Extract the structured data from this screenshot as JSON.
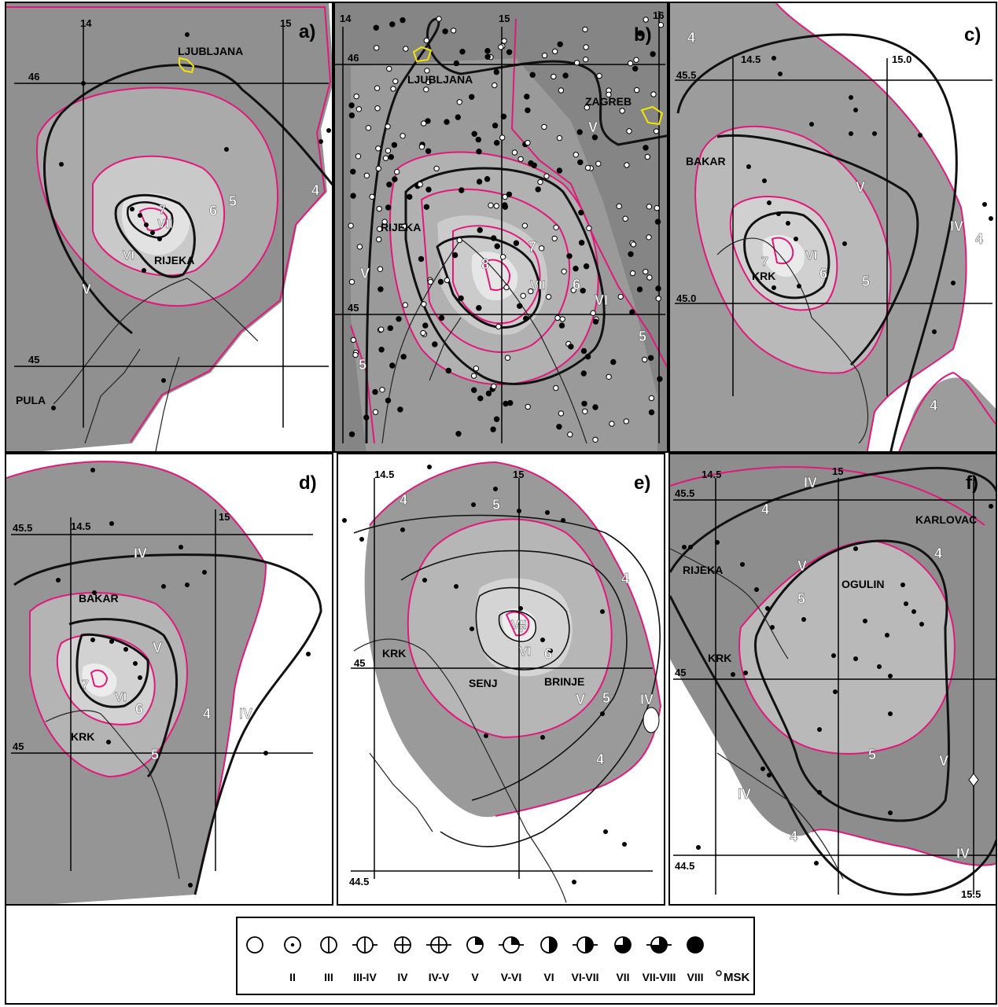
{
  "panels": [
    {
      "id": "a",
      "label": "a)",
      "grid_labels": [
        "14",
        "15",
        "46",
        "45"
      ],
      "places": [
        "LJUBLJANA",
        "RIJEKA",
        "PULA"
      ],
      "isoseismal_labels": [
        "VII",
        "VI",
        "V"
      ],
      "contour_labels": [
        "7",
        "6",
        "5",
        "4"
      ]
    },
    {
      "id": "b",
      "label": "b)",
      "grid_labels": [
        "14",
        "15",
        "16",
        "46",
        "45"
      ],
      "places": [
        "LJUBLJANA",
        "ZAGREB",
        "RIJEKA"
      ],
      "isoseismal_labels": [
        "VII",
        "VI",
        "V",
        "V"
      ],
      "contour_labels": [
        "8",
        "7",
        "6",
        "5",
        "5"
      ]
    },
    {
      "id": "c",
      "label": "c)",
      "grid_labels": [
        "14.5",
        "15.0",
        "45.5",
        "45.0"
      ],
      "places": [
        "BAKAR",
        "KRK"
      ],
      "isoseismal_labels": [
        "VI",
        "V",
        "IV"
      ],
      "contour_labels": [
        "7",
        "6",
        "5",
        "4",
        "4",
        "4"
      ]
    },
    {
      "id": "d",
      "label": "d)",
      "grid_labels": [
        "14.5",
        "15",
        "45.5",
        "45"
      ],
      "places": [
        "BAKAR",
        "KRK"
      ],
      "isoseismal_labels": [
        "VI",
        "V",
        "IV",
        "IV"
      ],
      "contour_labels": [
        "7",
        "6",
        "5",
        "4"
      ]
    },
    {
      "id": "e",
      "label": "e)",
      "grid_labels": [
        "14.5",
        "15",
        "45",
        "44.5"
      ],
      "places": [
        "KRK",
        "SENJ",
        "BRINJE"
      ],
      "isoseismal_labels": [
        "VII",
        "VI",
        "V",
        "IV"
      ],
      "contour_labels": [
        "7",
        "6",
        "5",
        "5",
        "4",
        "4",
        "4"
      ]
    },
    {
      "id": "f",
      "label": "f)",
      "grid_labels": [
        "14.5",
        "15",
        "45.5",
        "45",
        "44.5",
        "15.5"
      ],
      "places": [
        "KARLOVAC",
        "RIJEKA",
        "OGULIN",
        "KRK"
      ],
      "isoseismal_labels": [
        "IV",
        "V",
        "V",
        "IV",
        "IV"
      ],
      "contour_labels": [
        "4",
        "4",
        "5",
        "5",
        "4"
      ]
    }
  ],
  "legend": {
    "items": [
      {
        "symbol": "circle-empty-icon",
        "label": ""
      },
      {
        "symbol": "circle-dot-icon",
        "label": "II"
      },
      {
        "symbol": "circle-vbar-icon",
        "label": "III"
      },
      {
        "symbol": "circle-vbar-tick-icon",
        "label": "III-IV"
      },
      {
        "symbol": "circle-cross-icon",
        "label": "IV"
      },
      {
        "symbol": "circle-cross-tick-icon",
        "label": "IV-V"
      },
      {
        "symbol": "circle-quarter-icon",
        "label": "V"
      },
      {
        "symbol": "circle-quarter-tick-icon",
        "label": "V-VI"
      },
      {
        "symbol": "circle-half-icon",
        "label": "VI"
      },
      {
        "symbol": "circle-half-tick-icon",
        "label": "VI-VII"
      },
      {
        "symbol": "circle-threequarter-icon",
        "label": "VII"
      },
      {
        "symbol": "circle-threequarter-tick-icon",
        "label": "VII-VIII"
      },
      {
        "symbol": "circle-full-icon",
        "label": "VIII"
      }
    ],
    "unit": "MSK"
  },
  "colors": {
    "contour": "#e0197a",
    "isoseismal": "#111111",
    "city": "#f2e600",
    "shade_outer": "#8f8f8f",
    "shade_mid": "#b4b4b4",
    "shade_inner": "#dcdcdc"
  }
}
